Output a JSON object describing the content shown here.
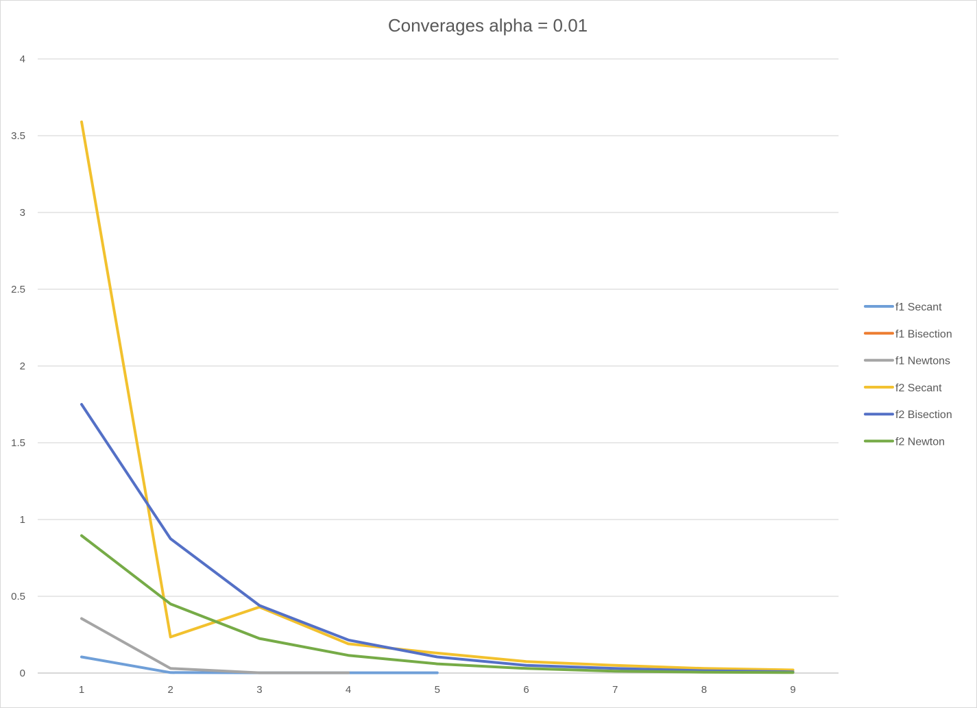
{
  "chart_data": {
    "type": "line",
    "title": "Converages alpha = 0.01",
    "xlabel": "",
    "ylabel": "",
    "x": [
      1,
      2,
      3,
      4,
      5,
      6,
      7,
      8,
      9
    ],
    "x_tick_labels": [
      "1",
      "2",
      "3",
      "4",
      "5",
      "6",
      "7",
      "8",
      "9"
    ],
    "ylim": [
      0,
      4
    ],
    "y_ticks": [
      0,
      0.5,
      1,
      1.5,
      2,
      2.5,
      3,
      3.5,
      4
    ],
    "y_tick_labels": [
      "0",
      "0.5",
      "1",
      "1.5",
      "2",
      "2.5",
      "3",
      "3.5",
      "4"
    ],
    "grid": "horizontal",
    "legend_position": "right",
    "series": [
      {
        "name": "f1 Secant",
        "color": "#6f9fd8",
        "values": [
          0.105,
          0.003,
          0.002,
          0.002,
          0.002,
          null,
          null,
          null,
          null
        ]
      },
      {
        "name": "f1 Bisection",
        "color": "#ed7d31",
        "values": [
          null,
          null,
          null,
          null,
          null,
          null,
          null,
          null,
          null
        ]
      },
      {
        "name": "f1 Newtons",
        "color": "#a5a5a5",
        "values": [
          0.355,
          0.03,
          0.002,
          0.002,
          null,
          null,
          null,
          null,
          null
        ]
      },
      {
        "name": "f2 Secant",
        "color": "#f2c12e",
        "values": [
          3.59,
          0.235,
          0.43,
          0.19,
          0.13,
          0.075,
          0.05,
          0.03,
          0.02
        ]
      },
      {
        "name": "f2 Bisection",
        "color": "#5470c6",
        "values": [
          1.75,
          0.875,
          0.44,
          0.215,
          0.105,
          0.05,
          0.03,
          0.015,
          0.008
        ]
      },
      {
        "name": "f2 Newton",
        "color": "#76ab47",
        "values": [
          0.895,
          0.45,
          0.225,
          0.115,
          0.06,
          0.03,
          0.012,
          0.006,
          0.003
        ]
      }
    ]
  }
}
